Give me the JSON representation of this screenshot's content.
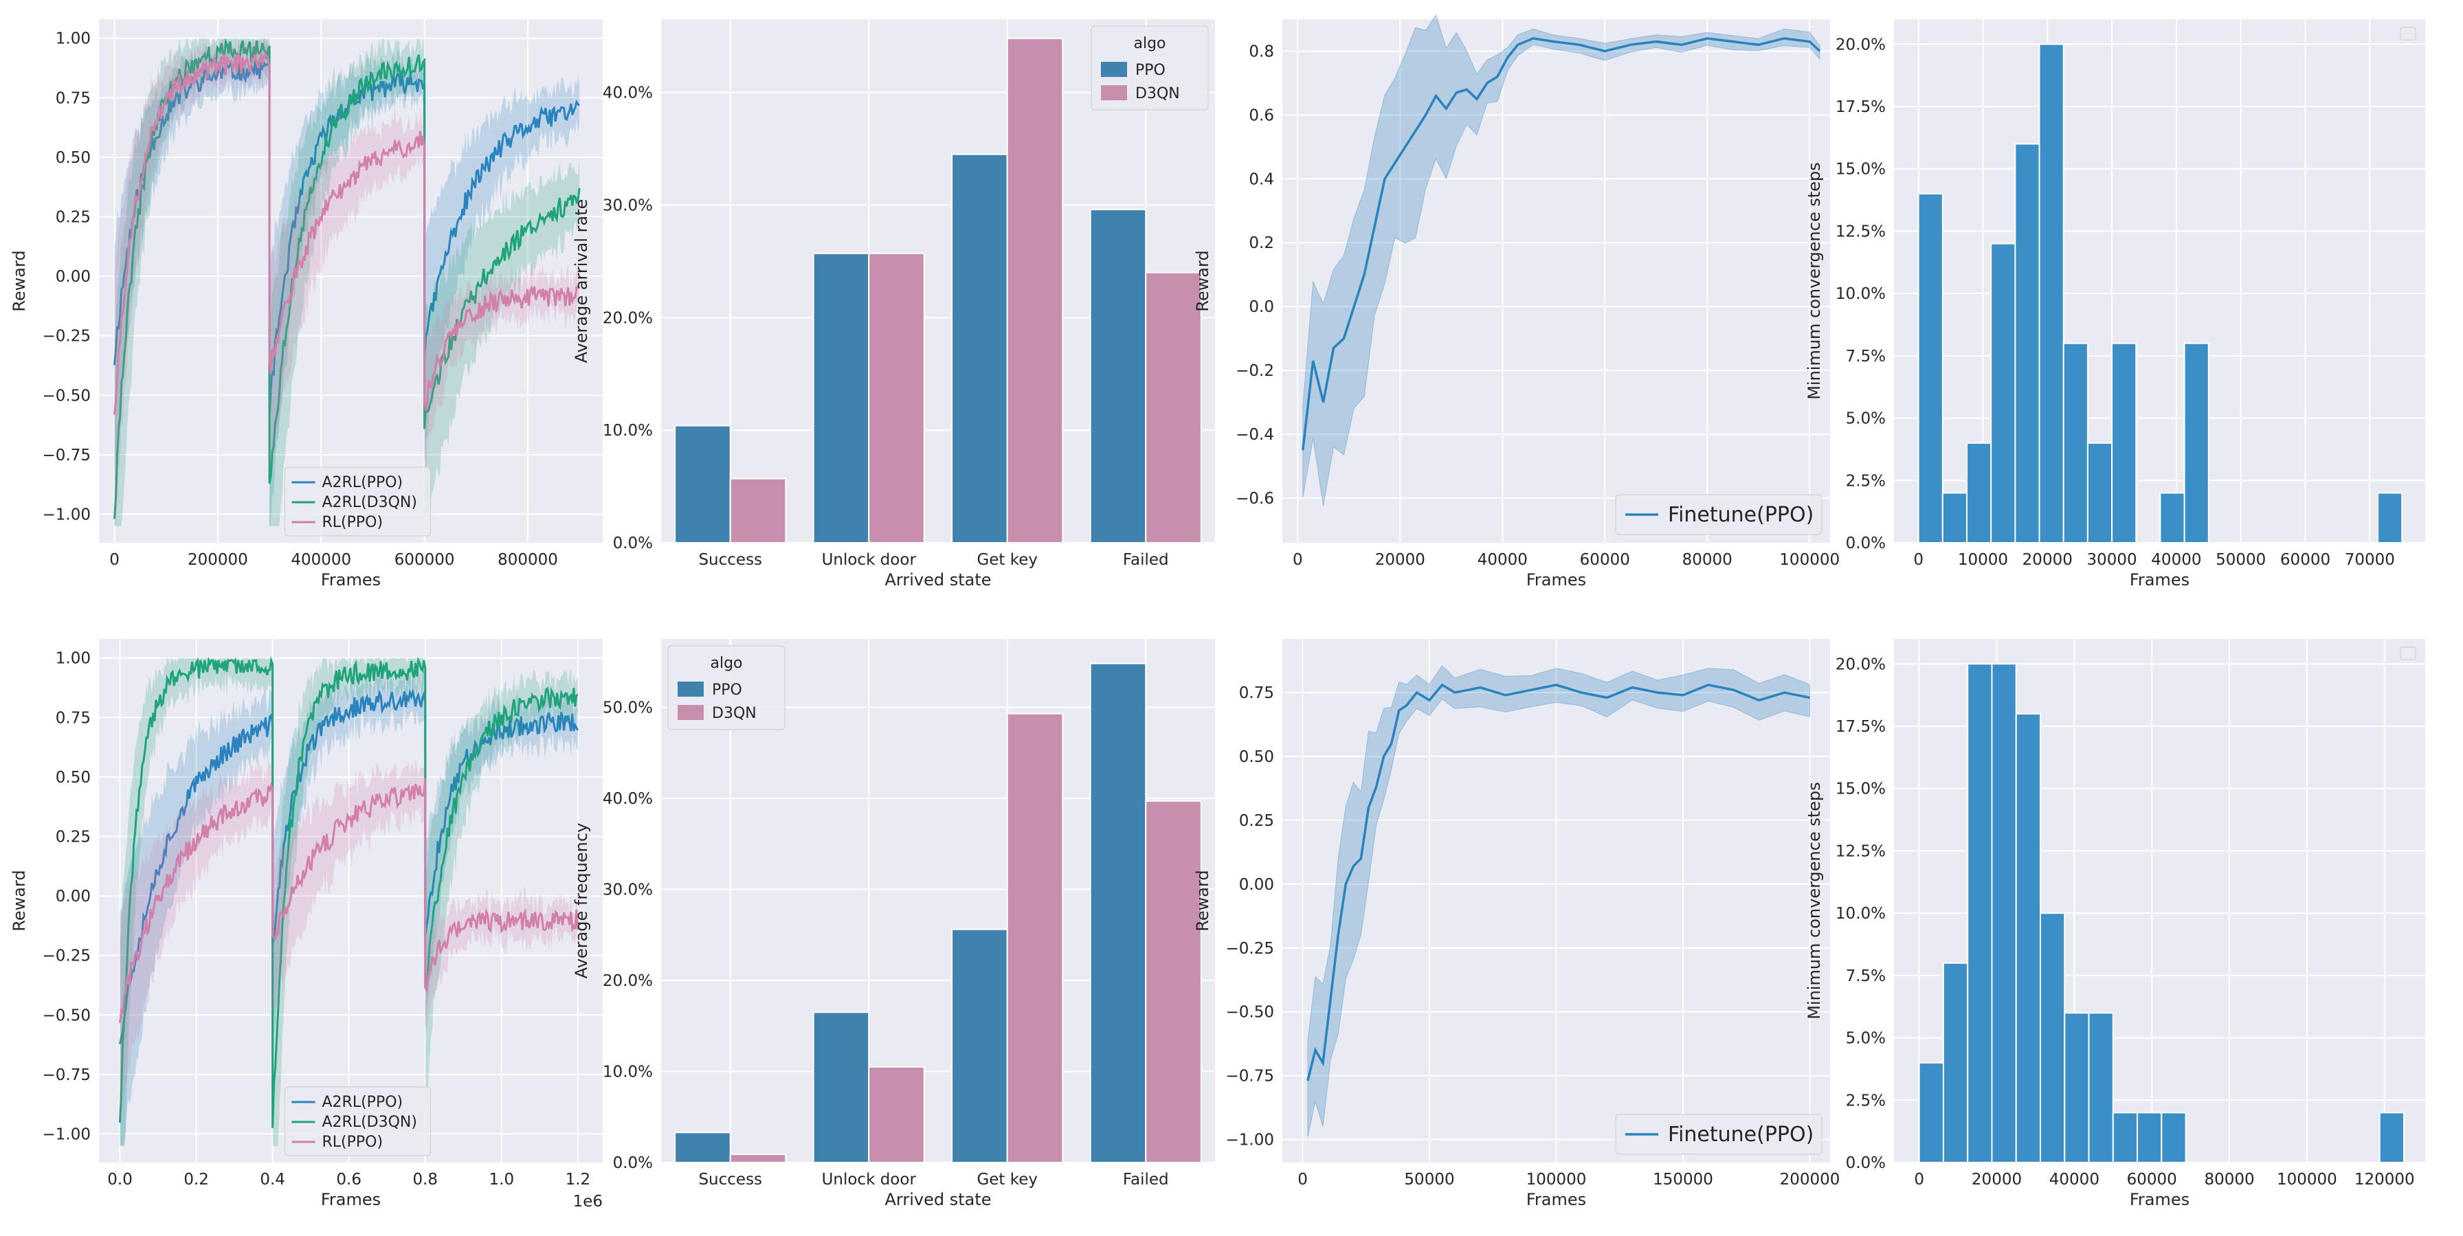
{
  "colors": {
    "ppo": "#2a82be",
    "d3qn_line": "#1fa37a",
    "rl": "#d37fab",
    "bar_ppo": "#3f82ad",
    "bar_d3qn": "#c78fad",
    "hist": "#3b8fc6",
    "panel_bg": "#eaeaf2",
    "grid": "#ffffff"
  },
  "chart_data": [
    {
      "id": "p1",
      "type": "line",
      "xlabel": "Frames",
      "ylabel": "Reward",
      "xlim": [
        -30000,
        945000
      ],
      "ylim": [
        -1.12,
        1.08
      ],
      "xticks": [
        0,
        200000,
        400000,
        600000,
        800000
      ],
      "xtick_labels": [
        "0",
        "200000",
        "400000",
        "600000",
        "800000"
      ],
      "yticks": [
        -1.0,
        -0.75,
        -0.5,
        -0.25,
        0.0,
        0.25,
        0.5,
        0.75,
        1.0
      ],
      "ytick_labels": [
        "−1.00",
        "−0.75",
        "−0.50",
        "−0.25",
        "0.00",
        "0.25",
        "0.50",
        "0.75",
        "1.00"
      ],
      "legend": {
        "position": "bottom-center",
        "entries": [
          "A2RL(PPO)",
          "A2RL(D3QN)",
          "RL(PPO)"
        ]
      },
      "series": [
        {
          "name": "A2RL(PPO)",
          "color_key": "ppo",
          "segments": [
            {
              "x0": 0,
              "x1": 300000,
              "start": -0.35,
              "end": 0.88,
              "k": 55000
            },
            {
              "x0": 300000,
              "x1": 600000,
              "start": -0.55,
              "end": 0.83,
              "k": 60000
            },
            {
              "x0": 600000,
              "x1": 900000,
              "start": -0.3,
              "end": 0.74,
              "k": 90000
            }
          ]
        },
        {
          "name": "A2RL(D3QN)",
          "color_key": "d3qn_line",
          "segments": [
            {
              "x0": 0,
              "x1": 300000,
              "start": -1.0,
              "end": 0.96,
              "k": 45000
            },
            {
              "x0": 300000,
              "x1": 600000,
              "start": -0.9,
              "end": 0.93,
              "k": 70000
            },
            {
              "x0": 600000,
              "x1": 900000,
              "start": -0.6,
              "end": 0.45,
              "k": 140000
            }
          ]
        },
        {
          "name": "RL(PPO)",
          "color_key": "rl",
          "segments": [
            {
              "x0": 0,
              "x1": 300000,
              "start": -0.6,
              "end": 0.9,
              "k": 45000
            },
            {
              "x0": 300000,
              "x1": 600000,
              "start": -0.4,
              "end": 0.62,
              "k": 100000
            },
            {
              "x0": 600000,
              "x1": 900000,
              "start": -0.55,
              "end": -0.08,
              "k": 50000
            }
          ]
        }
      ]
    },
    {
      "id": "p2",
      "type": "bar",
      "xlabel": "Arrived state",
      "ylabel": "Average arrival rate",
      "categories": [
        "Success",
        "Unlock door",
        "Get key",
        "Failed"
      ],
      "ylim": [
        0,
        0.465
      ],
      "yticks": [
        0,
        0.1,
        0.2,
        0.3,
        0.4
      ],
      "ytick_labels": [
        "0.0%",
        "10.0%",
        "20.0%",
        "30.0%",
        "40.0%"
      ],
      "legend": {
        "position": "top-right",
        "title": "algo",
        "entries": [
          "PPO",
          "D3QN"
        ]
      },
      "series": [
        {
          "name": "PPO",
          "color_key": "bar_ppo",
          "values": [
            0.104,
            0.257,
            0.345,
            0.296
          ]
        },
        {
          "name": "D3QN",
          "color_key": "bar_d3qn",
          "values": [
            0.057,
            0.257,
            0.448,
            0.24
          ]
        }
      ]
    },
    {
      "id": "p3",
      "type": "line",
      "xlabel": "Frames",
      "ylabel": "Reward",
      "xlim": [
        -3000,
        104000
      ],
      "ylim": [
        -0.74,
        0.9
      ],
      "xticks": [
        0,
        20000,
        40000,
        60000,
        80000,
        100000
      ],
      "xtick_labels": [
        "0",
        "20000",
        "40000",
        "60000",
        "80000",
        "100000"
      ],
      "yticks": [
        -0.6,
        -0.4,
        -0.2,
        0.0,
        0.2,
        0.4,
        0.6,
        0.8
      ],
      "ytick_labels": [
        "−0.6",
        "−0.4",
        "−0.2",
        "0.0",
        "0.2",
        "0.4",
        "0.6",
        "0.8"
      ],
      "legend": {
        "position": "bottom-right",
        "entries": [
          "Finetune(PPO)"
        ]
      },
      "series": [
        {
          "name": "Finetune(PPO)",
          "color_key": "ppo",
          "x": [
            1000,
            3000,
            5000,
            7000,
            9000,
            11000,
            13000,
            15000,
            17000,
            19000,
            21000,
            23000,
            25000,
            27000,
            29000,
            31000,
            33000,
            35000,
            37000,
            39000,
            41000,
            43000,
            46000,
            50000,
            55000,
            60000,
            65000,
            70000,
            75000,
            80000,
            85000,
            90000,
            95000,
            100000,
            102000
          ],
          "y": [
            -0.45,
            -0.17,
            -0.3,
            -0.13,
            -0.1,
            0.0,
            0.1,
            0.25,
            0.4,
            0.45,
            0.5,
            0.55,
            0.6,
            0.66,
            0.62,
            0.67,
            0.68,
            0.65,
            0.7,
            0.72,
            0.78,
            0.82,
            0.84,
            0.83,
            0.82,
            0.8,
            0.82,
            0.83,
            0.82,
            0.84,
            0.83,
            0.82,
            0.84,
            0.83,
            0.8
          ],
          "band": [
            0.2,
            0.3,
            0.35,
            0.35,
            0.38,
            0.4,
            0.42,
            0.4,
            0.38,
            0.38,
            0.38,
            0.35,
            0.3,
            0.28,
            0.3,
            0.2,
            0.15,
            0.12,
            0.1,
            0.08,
            0.05,
            0.04,
            0.03,
            0.03,
            0.03,
            0.03,
            0.03,
            0.03,
            0.03,
            0.03,
            0.03,
            0.03,
            0.03,
            0.03,
            0.03
          ]
        }
      ]
    },
    {
      "id": "p4",
      "type": "bar",
      "xlabel": "Frames",
      "ylabel": "Minimum convergence steps",
      "xlim": [
        -3800,
        78600
      ],
      "ylim": [
        0,
        0.21
      ],
      "xticks": [
        0,
        10000,
        20000,
        30000,
        40000,
        50000,
        60000,
        70000
      ],
      "xtick_labels": [
        "0",
        "10000",
        "20000",
        "30000",
        "40000",
        "50000",
        "60000",
        "70000"
      ],
      "yticks": [
        0,
        0.025,
        0.05,
        0.075,
        0.1,
        0.125,
        0.15,
        0.175,
        0.2
      ],
      "ytick_labels": [
        "0.0%",
        "2.5%",
        "5.0%",
        "7.5%",
        "10.0%",
        "12.5%",
        "15.0%",
        "17.5%",
        "20.0%"
      ],
      "bin_start": 0,
      "bin_width": 3750,
      "values": [
        0.14,
        0.02,
        0.04,
        0.12,
        0.16,
        0.2,
        0.08,
        0.04,
        0.08,
        0,
        0.02,
        0.08,
        0,
        0,
        0,
        0,
        0,
        0,
        0,
        0.02
      ]
    },
    {
      "id": "p5",
      "type": "line",
      "xlabel": "Frames",
      "ylabel": "Reward",
      "xlim": [
        -55000,
        1265000
      ],
      "ylim": [
        -1.12,
        1.08
      ],
      "xticks": [
        0,
        200000,
        400000,
        600000,
        800000,
        1000000,
        1200000
      ],
      "xtick_labels": [
        "0.0",
        "0.2",
        "0.4",
        "0.6",
        "0.8",
        "1.0",
        "1.2"
      ],
      "x_offset_label": "1e6",
      "yticks": [
        -1.0,
        -0.75,
        -0.5,
        -0.25,
        0.0,
        0.25,
        0.5,
        0.75,
        1.0
      ],
      "ytick_labels": [
        "−1.00",
        "−0.75",
        "−0.50",
        "−0.25",
        "0.00",
        "0.25",
        "0.50",
        "0.75",
        "1.00"
      ],
      "legend": {
        "position": "bottom-center",
        "entries": [
          "A2RL(PPO)",
          "A2RL(D3QN)",
          "RL(PPO)"
        ]
      },
      "series": [
        {
          "name": "A2RL(PPO)",
          "color_key": "ppo",
          "segments": [
            {
              "x0": 0,
              "x1": 400000,
              "start": -0.6,
              "end": 0.8,
              "k": 140000
            },
            {
              "x0": 400000,
              "x1": 800000,
              "start": -0.2,
              "end": 0.82,
              "k": 60000
            },
            {
              "x0": 800000,
              "x1": 1200000,
              "start": -0.2,
              "end": 0.73,
              "k": 60000
            }
          ]
        },
        {
          "name": "A2RL(D3QN)",
          "color_key": "d3qn_line",
          "segments": [
            {
              "x0": 0,
              "x1": 400000,
              "start": -0.97,
              "end": 0.97,
              "k": 40000
            },
            {
              "x0": 400000,
              "x1": 800000,
              "start": -0.97,
              "end": 0.95,
              "k": 45000
            },
            {
              "x0": 800000,
              "x1": 1200000,
              "start": -0.4,
              "end": 0.85,
              "k": 80000
            }
          ]
        },
        {
          "name": "RL(PPO)",
          "color_key": "rl",
          "segments": [
            {
              "x0": 0,
              "x1": 400000,
              "start": -0.5,
              "end": 0.5,
              "k": 150000
            },
            {
              "x0": 400000,
              "x1": 800000,
              "start": -0.2,
              "end": 0.5,
              "k": 150000
            },
            {
              "x0": 800000,
              "x1": 1200000,
              "start": -0.4,
              "end": -0.1,
              "k": 40000
            }
          ]
        }
      ]
    },
    {
      "id": "p6",
      "type": "bar",
      "xlabel": "Arrived state",
      "ylabel": "Average frequency",
      "categories": [
        "Success",
        "Unlock door",
        "Get key",
        "Failed"
      ],
      "ylim": [
        0,
        0.575
      ],
      "yticks": [
        0,
        0.1,
        0.2,
        0.3,
        0.4,
        0.5
      ],
      "ytick_labels": [
        "0.0%",
        "10.0%",
        "20.0%",
        "30.0%",
        "40.0%",
        "50.0%"
      ],
      "legend": {
        "position": "top-left",
        "title": "algo",
        "entries": [
          "PPO",
          "D3QN"
        ]
      },
      "series": [
        {
          "name": "PPO",
          "color_key": "bar_ppo",
          "values": [
            0.033,
            0.165,
            0.256,
            0.548
          ]
        },
        {
          "name": "D3QN",
          "color_key": "bar_d3qn",
          "values": [
            0.009,
            0.105,
            0.493,
            0.397
          ]
        }
      ]
    },
    {
      "id": "p7",
      "type": "line",
      "xlabel": "Frames",
      "ylabel": "Reward",
      "xlim": [
        -8000,
        208000
      ],
      "ylim": [
        -1.09,
        0.96
      ],
      "xticks": [
        0,
        50000,
        100000,
        150000,
        200000
      ],
      "xtick_labels": [
        "0",
        "50000",
        "100000",
        "150000",
        "200000"
      ],
      "yticks": [
        -1.0,
        -0.75,
        -0.5,
        -0.25,
        0.0,
        0.25,
        0.5,
        0.75
      ],
      "ytick_labels": [
        "−1.00",
        "−0.75",
        "−0.50",
        "−0.25",
        "0.00",
        "0.25",
        "0.50",
        "0.75"
      ],
      "legend": {
        "position": "bottom-right",
        "entries": [
          "Finetune(PPO)"
        ]
      },
      "series": [
        {
          "name": "Finetune(PPO)",
          "color_key": "ppo",
          "x": [
            2000,
            5000,
            8000,
            11000,
            14000,
            17000,
            20000,
            23000,
            26000,
            29000,
            32000,
            35000,
            38000,
            41000,
            45000,
            50000,
            55000,
            60000,
            70000,
            80000,
            90000,
            100000,
            110000,
            120000,
            130000,
            140000,
            150000,
            160000,
            170000,
            180000,
            190000,
            200000
          ],
          "y": [
            -0.77,
            -0.65,
            -0.7,
            -0.45,
            -0.2,
            0.0,
            0.07,
            0.1,
            0.3,
            0.38,
            0.5,
            0.55,
            0.68,
            0.7,
            0.75,
            0.72,
            0.78,
            0.75,
            0.77,
            0.74,
            0.76,
            0.78,
            0.75,
            0.73,
            0.77,
            0.75,
            0.74,
            0.78,
            0.76,
            0.72,
            0.75,
            0.73
          ],
          "band": [
            0.22,
            0.3,
            0.35,
            0.35,
            0.4,
            0.4,
            0.38,
            0.35,
            0.3,
            0.25,
            0.2,
            0.15,
            0.12,
            0.1,
            0.08,
            0.08,
            0.08,
            0.08,
            0.08,
            0.08,
            0.08,
            0.08,
            0.08,
            0.08,
            0.08,
            0.08,
            0.08,
            0.08,
            0.08,
            0.08,
            0.08,
            0.08
          ]
        }
      ]
    },
    {
      "id": "p8",
      "type": "bar",
      "xlabel": "Frames",
      "ylabel": "Minimum convergence steps",
      "xlim": [
        -6500,
        130500
      ],
      "ylim": [
        0,
        0.21
      ],
      "xticks": [
        0,
        20000,
        40000,
        60000,
        80000,
        100000,
        120000
      ],
      "xtick_labels": [
        "0",
        "20000",
        "40000",
        "60000",
        "80000",
        "100000",
        "120000"
      ],
      "yticks": [
        0,
        0.025,
        0.05,
        0.075,
        0.1,
        0.125,
        0.15,
        0.175,
        0.2
      ],
      "ytick_labels": [
        "0.0%",
        "2.5%",
        "5.0%",
        "7.5%",
        "10.0%",
        "12.5%",
        "15.0%",
        "17.5%",
        "20.0%"
      ],
      "bin_start": 0,
      "bin_width": 6250,
      "values": [
        0.04,
        0.08,
        0.2,
        0.2,
        0.18,
        0.1,
        0.06,
        0.06,
        0.02,
        0.02,
        0.02,
        0,
        0,
        0,
        0,
        0,
        0,
        0,
        0,
        0.02
      ]
    }
  ]
}
